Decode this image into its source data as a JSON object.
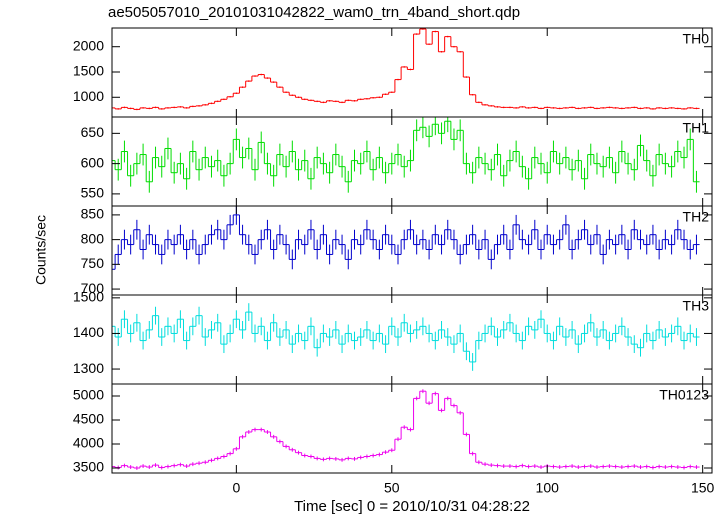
{
  "chart_data": {
    "type": "step",
    "title": "ae505057010_20101031042822_wam0_trn_4band_short.qdp",
    "xlabel": "Time [sec] 0 = 2010/10/31 04:28:22",
    "ylabel": "Counts/sec",
    "xlim": [
      -40,
      153
    ],
    "xticks": [
      0,
      50,
      100,
      150
    ],
    "x": [
      -40,
      -38,
      -36,
      -34,
      -32,
      -30,
      -28,
      -26,
      -24,
      -22,
      -20,
      -18,
      -16,
      -14,
      -12,
      -10,
      -8,
      -6,
      -4,
      -2,
      0,
      2,
      4,
      6,
      8,
      10,
      12,
      14,
      16,
      18,
      20,
      22,
      24,
      26,
      28,
      30,
      32,
      34,
      36,
      38,
      40,
      42,
      44,
      46,
      48,
      50,
      52,
      54,
      56,
      58,
      60,
      62,
      64,
      66,
      68,
      70,
      72,
      74,
      76,
      78,
      80,
      82,
      84,
      86,
      88,
      90,
      92,
      94,
      96,
      98,
      100,
      102,
      104,
      106,
      108,
      110,
      112,
      114,
      116,
      118,
      120,
      122,
      124,
      126,
      128,
      130,
      132,
      134,
      136,
      138,
      140,
      142,
      144,
      146,
      148
    ],
    "series": [
      {
        "name": "TH0",
        "color": "#ff0000",
        "error": 15,
        "ylim": [
          610,
          2370
        ],
        "yticks": [
          1000,
          1500,
          2000
        ],
        "values": [
          790,
          770,
          800,
          780,
          760,
          790,
          780,
          800,
          770,
          790,
          800,
          810,
          790,
          820,
          830,
          850,
          880,
          920,
          960,
          1010,
          1080,
          1200,
          1320,
          1420,
          1450,
          1380,
          1300,
          1200,
          1100,
          1040,
          1000,
          960,
          940,
          920,
          900,
          930,
          920,
          900,
          940,
          930,
          960,
          970,
          990,
          1000,
          1060,
          1100,
          1350,
          1600,
          1550,
          2250,
          2350,
          2050,
          2300,
          1900,
          2200,
          2000,
          1900,
          1400,
          1050,
          900,
          850,
          830,
          810,
          800,
          800,
          790,
          810,
          790,
          800,
          780,
          800,
          790,
          780,
          790,
          800,
          780,
          790,
          800,
          780,
          790,
          800,
          790,
          780,
          790,
          800,
          780,
          790,
          770,
          790,
          780,
          790,
          780,
          770,
          790,
          780
        ]
      },
      {
        "name": "TH1",
        "color": "#00dd00",
        "error": 18,
        "ylim": [
          530,
          677
        ],
        "yticks": [
          550,
          600,
          650
        ],
        "values": [
          605,
          590,
          620,
          580,
          600,
          615,
          570,
          610,
          595,
          625,
          585,
          600,
          575,
          620,
          590,
          610,
          595,
          605,
          580,
          600,
          640,
          610,
          625,
          590,
          635,
          600,
          580,
          615,
          595,
          620,
          590,
          605,
          575,
          610,
          600,
          585,
          615,
          595,
          570,
          605,
          600,
          620,
          590,
          610,
          585,
          600,
          615,
          595,
          605,
          655,
          660,
          645,
          665,
          650,
          670,
          640,
          655,
          600,
          585,
          610,
          600,
          590,
          615,
          580,
          605,
          620,
          595,
          575,
          610,
          600,
          585,
          620,
          600,
          610,
          590,
          605,
          575,
          615,
          600,
          595,
          610,
          585,
          620,
          600,
          590,
          630,
          605,
          580,
          615,
          600,
          595,
          620,
          610,
          640,
          570
        ]
      },
      {
        "name": "TH2",
        "color": "#0000cc",
        "error": 20,
        "ylim": [
          688,
          868
        ],
        "yticks": [
          700,
          750,
          800,
          850
        ],
        "values": [
          740,
          770,
          800,
          790,
          820,
          780,
          810,
          790,
          770,
          800,
          790,
          810,
          780,
          800,
          770,
          790,
          810,
          820,
          800,
          830,
          850,
          810,
          790,
          770,
          800,
          820,
          780,
          810,
          790,
          760,
          800,
          790,
          820,
          780,
          810,
          770,
          800,
          790,
          760,
          800,
          790,
          820,
          800,
          780,
          810,
          790,
          770,
          800,
          820,
          790,
          800,
          780,
          810,
          790,
          820,
          800,
          770,
          790,
          810,
          780,
          800,
          760,
          790,
          810,
          780,
          830,
          800,
          790,
          820,
          780,
          810,
          790,
          800,
          830,
          780,
          800,
          820,
          790,
          810,
          770,
          800,
          790,
          810,
          780,
          820,
          800,
          790,
          810,
          780,
          800,
          790,
          820,
          800,
          780,
          790
        ]
      },
      {
        "name": "TH3",
        "color": "#00dddd",
        "error": 25,
        "ylim": [
          1258,
          1508
        ],
        "yticks": [
          1300,
          1400,
          1500
        ],
        "values": [
          1420,
          1390,
          1440,
          1400,
          1430,
          1380,
          1410,
          1450,
          1390,
          1420,
          1400,
          1440,
          1380,
          1420,
          1450,
          1390,
          1410,
          1430,
          1370,
          1400,
          1440,
          1410,
          1460,
          1400,
          1420,
          1380,
          1430,
          1390,
          1410,
          1370,
          1400,
          1380,
          1420,
          1360,
          1400,
          1390,
          1410,
          1370,
          1400,
          1380,
          1390,
          1410,
          1380,
          1400,
          1370,
          1420,
          1390,
          1430,
          1400,
          1410,
          1420,
          1400,
          1380,
          1410,
          1390,
          1370,
          1400,
          1350,
          1320,
          1380,
          1400,
          1420,
          1390,
          1410,
          1430,
          1400,
          1380,
          1420,
          1410,
          1440,
          1400,
          1380,
          1420,
          1390,
          1410,
          1370,
          1400,
          1430,
          1390,
          1410,
          1380,
          1400,
          1420,
          1390,
          1370,
          1360,
          1400,
          1380,
          1410,
          1390,
          1400,
          1420,
          1380,
          1400,
          1390
        ]
      },
      {
        "name": "TH0123",
        "color": "#ee00ee",
        "error": 40,
        "ylim": [
          3396,
          5250
        ],
        "yticks": [
          3500,
          4000,
          4500,
          5000
        ],
        "values": [
          3530,
          3510,
          3550,
          3520,
          3500,
          3540,
          3520,
          3560,
          3510,
          3530,
          3550,
          3570,
          3540,
          3580,
          3600,
          3620,
          3660,
          3700,
          3740,
          3800,
          3900,
          4150,
          4250,
          4300,
          4300,
          4250,
          4150,
          4050,
          3950,
          3880,
          3820,
          3760,
          3740,
          3700,
          3680,
          3700,
          3690,
          3670,
          3700,
          3690,
          3720,
          3740,
          3760,
          3780,
          3830,
          3870,
          4100,
          4350,
          4300,
          4950,
          5100,
          4850,
          5050,
          4700,
          4950,
          4800,
          4650,
          4200,
          3800,
          3620,
          3580,
          3560,
          3550,
          3540,
          3540,
          3530,
          3550,
          3530,
          3540,
          3520,
          3540,
          3530,
          3520,
          3530,
          3540,
          3520,
          3530,
          3540,
          3520,
          3530,
          3540,
          3530,
          3520,
          3530,
          3540,
          3520,
          3530,
          3510,
          3530,
          3520,
          3530,
          3520,
          3510,
          3530,
          3520
        ]
      }
    ]
  }
}
